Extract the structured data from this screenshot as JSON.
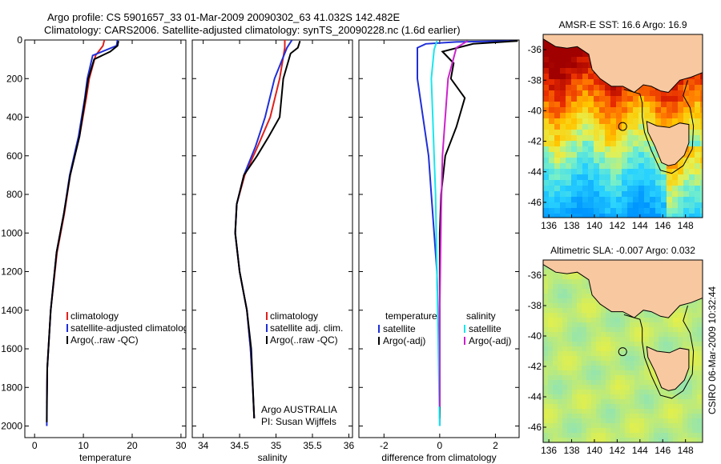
{
  "header": {
    "line1": "Argo profile: CS 5901657_33 01-Mar-2009 20090302_63 41.032S 142.482E",
    "line2": "Climatology: CARS2006. Satellite-adjusted climatology: synTS_20090228.nc (1.6d earlier)"
  },
  "colors": {
    "clim": "#e0201b",
    "sat": "#1f2fd8",
    "argo": "#000000",
    "sat_salt": "#19e6ee",
    "argo_salt": "#cc22cc",
    "land": "#f8c8a0"
  },
  "chart_data": [
    {
      "type": "line",
      "id": "temperature",
      "xlabel": "temperature",
      "ylabel": "",
      "xlim": [
        -2,
        31
      ],
      "ylim": [
        0,
        2060
      ],
      "xticks": [
        0,
        10,
        20,
        30
      ],
      "yticks": [
        0,
        200,
        400,
        600,
        800,
        1000,
        1200,
        1400,
        1600,
        1800,
        2000
      ],
      "y_inverted": true,
      "legend": {
        "placement": "bottom",
        "entries": [
          "climatology",
          "satellite-adjusted climatology",
          "Argo(..raw -QC)"
        ]
      },
      "series": [
        {
          "name": "climatology",
          "color_key": "clim",
          "x": [
            14.3,
            14.0,
            12.5,
            11.2,
            10.6,
            9.2,
            7.3,
            6.1,
            4.6,
            3.3,
            2.6,
            2.5
          ],
          "y": [
            0,
            30,
            80,
            200,
            300,
            500,
            700,
            900,
            1100,
            1400,
            1700,
            1880
          ]
        },
        {
          "name": "satellite-adjusted climatology",
          "color_key": "sat",
          "x": [
            17.0,
            16.8,
            11.9,
            10.8,
            10.3,
            9.0,
            7.2,
            6.0,
            4.5,
            3.3,
            2.6,
            2.5,
            2.5
          ],
          "y": [
            0,
            30,
            80,
            200,
            300,
            500,
            700,
            900,
            1100,
            1400,
            1700,
            1900,
            2000
          ]
        },
        {
          "name": "Argo(..raw -QC)",
          "color_key": "argo",
          "x": [
            17.2,
            17.0,
            15.5,
            12.2,
            11.0,
            9.2,
            7.3,
            6.0,
            4.5,
            3.3,
            2.6,
            2.5
          ],
          "y": [
            5,
            30,
            60,
            100,
            200,
            500,
            700,
            900,
            1100,
            1400,
            1700,
            1980
          ]
        }
      ]
    },
    {
      "type": "line",
      "id": "salinity",
      "xlabel": "salinity",
      "xlim": [
        33.85,
        36.05
      ],
      "ylim": [
        0,
        2060
      ],
      "xticks": [
        34,
        34.5,
        35,
        35.5,
        36
      ],
      "y_inverted": true,
      "legend": {
        "placement": "bottom",
        "entries": [
          "climatology",
          "satellite adj. clim.",
          "Argo(..raw -QC)"
        ]
      },
      "annotation": [
        "Argo AUSTRALIA",
        "PI: Susan Wijffels"
      ],
      "series": [
        {
          "name": "climatology",
          "color_key": "clim",
          "x": [
            35.12,
            35.12,
            35.05,
            34.92,
            34.75,
            34.57,
            34.46,
            34.44,
            34.5,
            34.6,
            34.65,
            34.68,
            34.7
          ],
          "y": [
            0,
            40,
            200,
            400,
            550,
            700,
            850,
            1000,
            1200,
            1400,
            1600,
            1800,
            1960
          ]
        },
        {
          "name": "satellite adj. clim.",
          "color_key": "sat",
          "x": [
            35.22,
            35.15,
            34.98,
            34.85,
            34.72,
            34.56,
            34.46,
            34.44,
            34.5,
            34.6,
            34.65,
            34.68,
            34.7
          ],
          "y": [
            0,
            40,
            200,
            400,
            550,
            700,
            850,
            1000,
            1200,
            1400,
            1600,
            1800,
            1960
          ]
        },
        {
          "name": "Argo(..raw -QC)",
          "color_key": "argo",
          "x": [
            35.33,
            35.3,
            35.2,
            35.1,
            35.05,
            34.9,
            34.74,
            34.56,
            34.46,
            34.44,
            34.5,
            34.6,
            34.66,
            34.7
          ],
          "y": [
            5,
            40,
            70,
            200,
            400,
            500,
            600,
            700,
            850,
            1000,
            1200,
            1400,
            1600,
            1960
          ]
        }
      ]
    },
    {
      "type": "line",
      "id": "difference",
      "xlabel": "difference from climatology",
      "xlim": [
        -2.9,
        2.85
      ],
      "ylim": [
        0,
        2060
      ],
      "xticks": [
        -2,
        0,
        2
      ],
      "y_inverted": true,
      "legend": {
        "placement": "bottom",
        "columns": [
          {
            "title": "temperature",
            "entries": [
              "satellite",
              "Argo(-adj)"
            ]
          },
          {
            "title": "salinity",
            "entries": [
              "satellite",
              "Argo(-adj)"
            ]
          }
        ]
      },
      "series": [
        {
          "name": "temperature satellite",
          "color_key": "sat",
          "x": [
            2.7,
            0.6,
            -0.5,
            -0.8,
            -0.8,
            -0.6,
            -0.4,
            -0.3,
            -0.2,
            -0.1,
            -0.05,
            0,
            0
          ],
          "y": [
            5,
            10,
            20,
            40,
            200,
            400,
            600,
            800,
            1000,
            1200,
            1500,
            1800,
            2000
          ]
        },
        {
          "name": "temperature Argo(-adj)",
          "color_key": "argo",
          "x": [
            2.8,
            1.2,
            0.1,
            0.5,
            0.4,
            0.9,
            0.6,
            0.2,
            0.05,
            0,
            0,
            0
          ],
          "y": [
            5,
            20,
            60,
            120,
            200,
            300,
            450,
            600,
            800,
            1000,
            1500,
            1960
          ]
        },
        {
          "name": "salinity satellite",
          "color_key": "sat_salt",
          "x": [
            -0.1,
            -0.2,
            -0.3,
            -0.25,
            -0.2,
            -0.15,
            -0.1,
            -0.05,
            0
          ],
          "y": [
            5,
            50,
            200,
            400,
            600,
            800,
            1200,
            1600,
            2000
          ]
        },
        {
          "name": "salinity Argo(-adj)",
          "color_key": "argo_salt",
          "x": [
            1.0,
            0.6,
            0.3,
            0.2,
            0.1,
            0.05,
            0,
            0
          ],
          "y": [
            5,
            40,
            200,
            400,
            600,
            900,
            1400,
            1900
          ]
        }
      ]
    }
  ],
  "maps": [
    {
      "title": "AMSR-E SST: 16.6 Argo: 16.9",
      "kind": "sst",
      "xlim": [
        135.5,
        149.5
      ],
      "ylim": [
        -47,
        -35
      ],
      "xticks": [
        136,
        138,
        140,
        142,
        144,
        146,
        148
      ],
      "yticks": [
        -36,
        -38,
        -40,
        -42,
        -44,
        -46
      ],
      "marker": {
        "lon": 142.482,
        "lat": -41.032
      }
    },
    {
      "title": "Altimetric SLA: -0.007 Argo: 0.032",
      "kind": "sla",
      "xlim": [
        135.5,
        149.5
      ],
      "ylim": [
        -47,
        -35
      ],
      "xticks": [
        136,
        138,
        140,
        142,
        144,
        146,
        148
      ],
      "yticks": [
        -36,
        -38,
        -40,
        -42,
        -44,
        -46
      ],
      "marker": {
        "lon": 142.482,
        "lat": -41.032
      }
    }
  ],
  "footer": {
    "stamp": "CSIRO 06-Mar-2009 10:32:44"
  }
}
